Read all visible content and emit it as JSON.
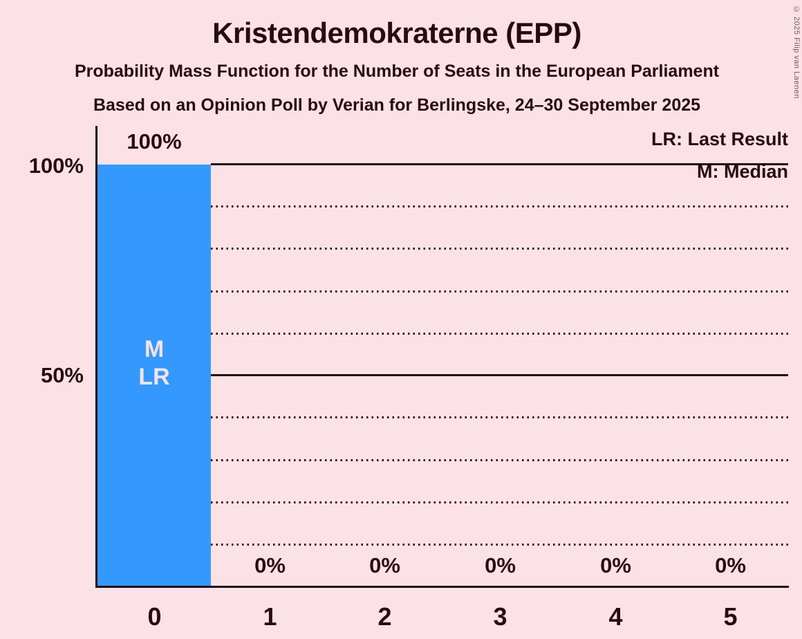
{
  "title": "Kristendemokraterne (EPP)",
  "subtitle1": "Probability Mass Function for the Number of Seats in the European Parliament",
  "subtitle2": "Based on an Opinion Poll by Verian for Berlingske, 24–30 September 2025",
  "copyright": "© 2025 Filip van Laenen",
  "legend": {
    "lr": "LR: Last Result",
    "m": "M: Median"
  },
  "y_axis": {
    "label_100": "100%",
    "label_50": "50%"
  },
  "bar": {
    "value_label": "100%",
    "median_marker": "M",
    "last_result_marker": "LR"
  },
  "zero_labels": [
    "0%",
    "0%",
    "0%",
    "0%",
    "0%"
  ],
  "x_labels": [
    "0",
    "1",
    "2",
    "3",
    "4",
    "5"
  ],
  "colors": {
    "background": "#fce2e6",
    "bar": "#3399ff",
    "text": "#2a0a12",
    "bar_annotation_text": "#fce2e6"
  },
  "chart_data": {
    "type": "bar",
    "title": "Kristendemokraterne (EPP)",
    "subtitle": "Probability Mass Function for the Number of Seats in the European Parliament",
    "source_note": "Based on an Opinion Poll by Verian for Berlingske, 24–30 September 2025",
    "categories": [
      0,
      1,
      2,
      3,
      4,
      5
    ],
    "values": [
      100,
      0,
      0,
      0,
      0,
      0
    ],
    "value_unit": "%",
    "bar_labels": [
      "100%",
      "0%",
      "0%",
      "0%",
      "0%",
      "0%"
    ],
    "ylim": [
      0,
      100
    ],
    "gridlines_pct": [
      10,
      20,
      30,
      40,
      50,
      60,
      70,
      80,
      90,
      100
    ],
    "solid_gridlines_pct": [
      50,
      100
    ],
    "grid_style": "dotted horizontal",
    "legend_entries": [
      "LR: Last Result",
      "M: Median"
    ],
    "median_at_category": 0,
    "last_result_at_category": 0,
    "bar_color": "#3399ff",
    "legend_position": "top-right"
  }
}
